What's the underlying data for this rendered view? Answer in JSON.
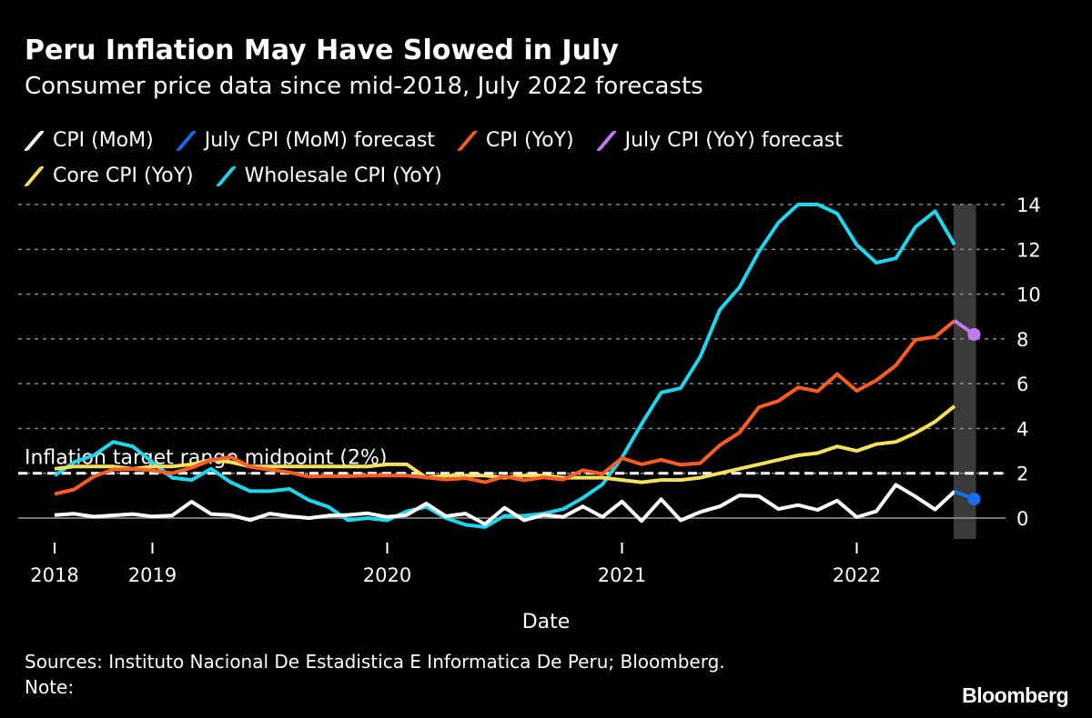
{
  "title": "Peru Inflation May Have Slowed in July",
  "subtitle": "Consumer price data since mid-2018, July 2022 forecasts",
  "legend": [
    {
      "label": "CPI (MoM)",
      "color": "#ffffff"
    },
    {
      "label": "July CPI (MoM) forecast",
      "color": "#1a6cf5"
    },
    {
      "label": "CPI (YoY)",
      "color": "#ff5c26"
    },
    {
      "label": "July CPI (YoY) forecast",
      "color": "#c27cf2"
    },
    {
      "label": "Core CPI (YoY)",
      "color": "#f5e15b"
    },
    {
      "label": "Wholesale CPI (YoY)",
      "color": "#1fd6ef"
    }
  ],
  "sources": "Sources: Instituto Nacional De Estadistica E Informatica De Peru; Bloomberg.",
  "note": "Note:",
  "logo": "Bloomberg",
  "chart_data": {
    "type": "line",
    "xlabel": "Date",
    "ylabel": "",
    "ylim": [
      -1,
      14
    ],
    "yticks": [
      0,
      2,
      4,
      6,
      8,
      10,
      12,
      14
    ],
    "xtick_labels": [
      "2018",
      "2019",
      "2020",
      "2021",
      "2022"
    ],
    "xtick_dates": [
      "2018-08",
      "2019-01",
      "2020-01",
      "2021-01",
      "2022-01"
    ],
    "y_axis_position": "right",
    "grid": "horizontal dotted",
    "legend_position": "top",
    "start_month": "2018-08",
    "end_month": "2022-06",
    "forecast_month": "2022-07",
    "annotation": {
      "label": "Inflation target range midpoint (2%)",
      "value": 2
    },
    "series": [
      {
        "name": "CPI (MoM)",
        "color": "#ffffff",
        "values": [
          0.13,
          0.19,
          0.06,
          0.12,
          0.18,
          0.07,
          0.11,
          0.73,
          0.18,
          0.13,
          -0.09,
          0.2,
          0.08,
          0.0,
          0.11,
          0.14,
          0.21,
          0.05,
          0.14,
          0.65,
          0.08,
          0.2,
          -0.27,
          0.46,
          -0.1,
          0.14,
          0.05,
          0.52,
          0.05,
          0.74,
          -0.13,
          0.84,
          -0.1,
          0.27,
          0.52,
          1.01,
          0.98,
          0.4,
          0.58,
          0.36,
          0.78,
          0.04,
          0.3,
          1.48,
          0.96,
          0.38,
          1.19
        ]
      },
      {
        "name": "CPI (YoY)",
        "color": "#ff5c26",
        "values": [
          1.07,
          1.28,
          1.85,
          2.17,
          2.19,
          2.13,
          2.0,
          2.25,
          2.59,
          2.73,
          2.29,
          2.16,
          2.04,
          1.85,
          1.88,
          1.87,
          1.9,
          1.9,
          1.9,
          1.82,
          1.72,
          1.78,
          1.6,
          1.86,
          1.69,
          1.82,
          1.72,
          2.14,
          1.97,
          2.68,
          2.4,
          2.6,
          2.38,
          2.45,
          3.25,
          3.81,
          4.95,
          5.23,
          5.83,
          5.66,
          6.43,
          5.68,
          6.15,
          6.82,
          7.96,
          8.09,
          8.81
        ]
      },
      {
        "name": "Core CPI (YoY)",
        "color": "#f5e15b",
        "values": [
          2.2,
          2.3,
          2.3,
          2.3,
          2.2,
          2.3,
          2.3,
          2.4,
          2.6,
          2.5,
          2.3,
          2.3,
          2.3,
          2.3,
          2.3,
          2.3,
          2.3,
          2.4,
          2.4,
          1.8,
          1.9,
          1.9,
          1.9,
          1.8,
          1.9,
          1.9,
          1.8,
          1.8,
          1.8,
          1.7,
          1.6,
          1.7,
          1.7,
          1.8,
          2.0,
          2.2,
          2.4,
          2.6,
          2.8,
          2.9,
          3.2,
          3.0,
          3.3,
          3.4,
          3.8,
          4.3,
          5.0
        ]
      },
      {
        "name": "Wholesale CPI (YoY)",
        "color": "#1fd6ef",
        "values": [
          1.9,
          2.5,
          2.8,
          3.4,
          3.2,
          2.5,
          1.8,
          1.7,
          2.2,
          1.6,
          1.2,
          1.2,
          1.3,
          0.8,
          0.5,
          -0.1,
          0.0,
          -0.1,
          0.3,
          0.5,
          0.0,
          -0.3,
          -0.4,
          0.1,
          0.1,
          0.2,
          0.4,
          0.9,
          1.5,
          2.7,
          4.2,
          5.6,
          5.8,
          7.2,
          9.3,
          10.3,
          11.9,
          13.2,
          14.0,
          14.0,
          13.6,
          12.2,
          11.4,
          11.6,
          13.0,
          13.7,
          12.2
        ]
      },
      {
        "name": "July CPI (MoM) forecast",
        "color": "#1a6cf5",
        "values": [
          0.85
        ]
      },
      {
        "name": "July CPI (YoY) forecast",
        "color": "#c27cf2",
        "values": [
          8.2
        ]
      }
    ]
  }
}
